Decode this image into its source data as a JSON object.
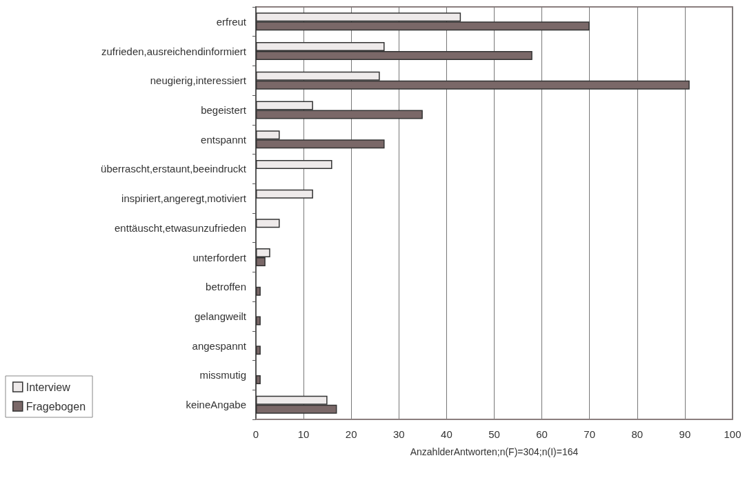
{
  "chart_data": {
    "type": "bar",
    "orientation": "horizontal",
    "xlabel": "AnzahlderAntworten;n(F)=304;n(I)=164",
    "categories": [
      "erfreut",
      "zufrieden,ausreichendinformiert",
      "neugierig,interessiert",
      "begeistert",
      "entspannt",
      "überrascht,erstaunt,beeindruckt",
      "inspiriert,angeregt,motiviert",
      "enttäuscht,etwasunzufrieden",
      "unterfordert",
      "betroffen",
      "gelangweilt",
      "angespannt",
      "missmutig",
      "keineAngabe"
    ],
    "series": [
      {
        "name": "Interview",
        "color": "#eeeaea",
        "values": [
          43,
          27,
          26,
          12,
          5,
          16,
          12,
          5,
          3,
          null,
          null,
          null,
          null,
          15
        ]
      },
      {
        "name": "Fragebogen",
        "color": "#7a6868",
        "values": [
          70,
          58,
          91,
          35,
          27,
          null,
          null,
          null,
          2,
          1,
          1,
          1,
          1,
          17
        ]
      }
    ],
    "xlim": [
      0,
      100
    ],
    "xticks": [
      0,
      10,
      20,
      30,
      40,
      50,
      60,
      70,
      80,
      90,
      100
    ],
    "grid": "x",
    "legend": "bottom left"
  }
}
